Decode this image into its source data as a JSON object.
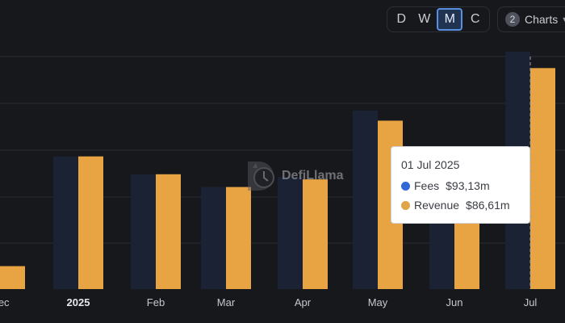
{
  "toolbar": {
    "interval_buttons": [
      "D",
      "W",
      "M",
      "C"
    ],
    "active_interval": "M",
    "charts_count": "2",
    "charts_label": "Charts"
  },
  "watermark": {
    "text": "DefiLlama"
  },
  "tooltip": {
    "date": "01 Jul 2025",
    "rows": [
      {
        "label": "Fees",
        "value": "$93,13m",
        "color": "#3267d6"
      },
      {
        "label": "Revenue",
        "value": "$86,61m",
        "color": "#e0a546"
      }
    ]
  },
  "colors": {
    "background": "#17181c",
    "fees": "#1a2233",
    "revenue": "#e8a443",
    "grid": "#2a2c33"
  },
  "chart_data": {
    "type": "bar",
    "categories": [
      "Dec",
      "2025",
      "Feb",
      "Mar",
      "Apr",
      "May",
      "Jun",
      "Jul"
    ],
    "bold_categories": [
      "2025"
    ],
    "series": [
      {
        "name": "Fees",
        "values": [
          9,
          52,
          45,
          40,
          44,
          70,
          45,
          93.13
        ]
      },
      {
        "name": "Revenue",
        "values": [
          9,
          52,
          45,
          40,
          43,
          66,
          44,
          86.61
        ]
      }
    ],
    "ylim": [
      0,
      100
    ],
    "grid": true,
    "highlight_category": "Jul"
  }
}
